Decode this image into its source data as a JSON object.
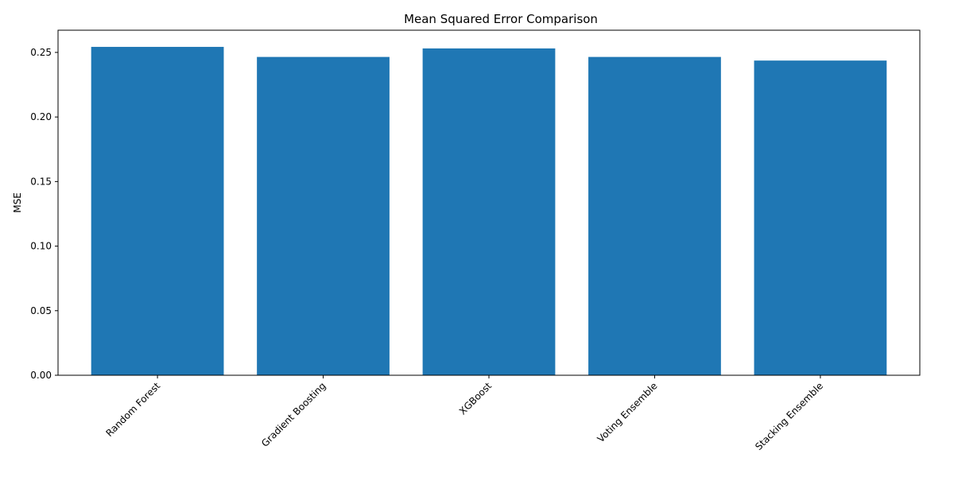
{
  "chart_data": {
    "type": "bar",
    "title": "Mean Squared Error Comparison",
    "xlabel": "",
    "ylabel": "MSE",
    "categories": [
      "Random Forest",
      "Gradient Boosting",
      "XGBoost",
      "Voting Ensemble",
      "Stacking Ensemble"
    ],
    "values": [
      0.2543,
      0.2465,
      0.2531,
      0.2465,
      0.2437
    ],
    "ylim": [
      0,
      0.2672
    ],
    "yticks": [
      "0.00",
      "0.05",
      "0.10",
      "0.15",
      "0.20",
      "0.25"
    ],
    "grid": false,
    "bar_color": "#1f77b4",
    "xtick_rotation_degrees": 45
  }
}
